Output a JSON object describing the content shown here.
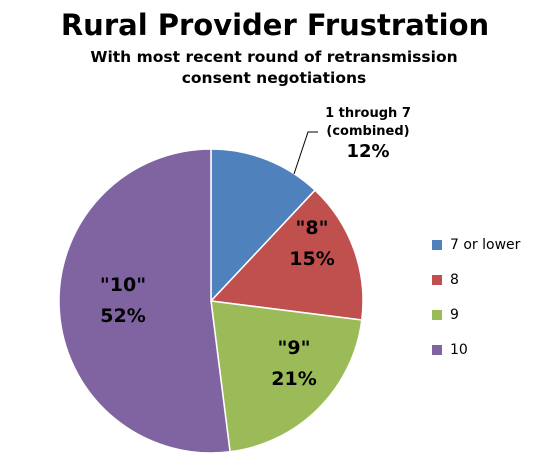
{
  "chart_data": {
    "type": "pie",
    "title": "Rural Provider Frustration",
    "subtitle": "With most recent round of retransmission consent negotiations",
    "slices": [
      {
        "legend": "7 or lower",
        "value": 12,
        "color": "#4F81BD",
        "label_lines": [
          "1 through 7",
          "(combined)"
        ],
        "value_label": "12%"
      },
      {
        "legend": "8",
        "value": 15,
        "color": "#C0504D",
        "label_lines": [
          "\"8\""
        ],
        "value_label": "15%"
      },
      {
        "legend": "9",
        "value": 21,
        "color": "#9BBB59",
        "label_lines": [
          "\"9\""
        ],
        "value_label": "21%"
      },
      {
        "legend": "10",
        "value": 52,
        "color": "#8064A2",
        "label_lines": [
          "\"10\""
        ],
        "value_label": "52%"
      }
    ],
    "legend_position": "right"
  }
}
